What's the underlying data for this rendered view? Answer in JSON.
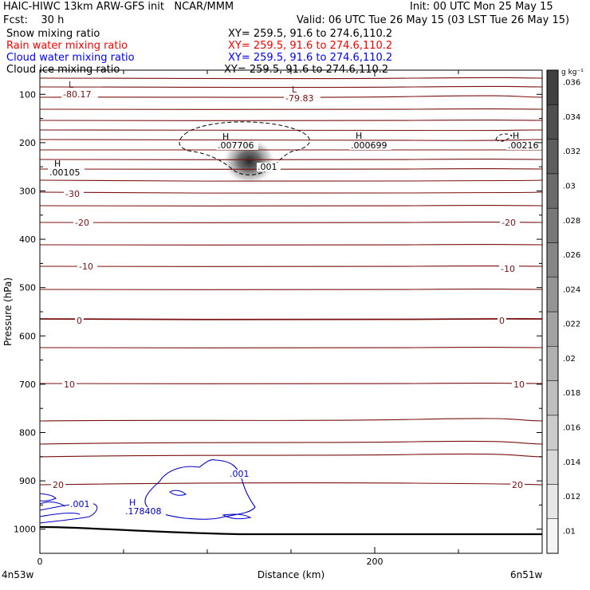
{
  "header": {
    "line1_left": "HAIC-HIWC 13km ARW-GFS init   NCAR/MMM",
    "line1_right": "Init: 00 UTC Mon 25 May 15",
    "line2_left": "Fcst:    30 h",
    "line2_right": "Valid: 06 UTC Tue 26 May 15 (03 LST Tue 26 May 15)",
    "fields": [
      {
        "name": "Snow mixing ratio",
        "xy": "XY= 259.5, 91.6 to 274.6,110.2",
        "color": "#000000"
      },
      {
        "name": "Rain water mixing ratio",
        "xy": "XY= 259.5, 91.6 to 274.6,110.2",
        "color": "#ff0000"
      },
      {
        "name": "Cloud water mixing ratio",
        "xy": "XY= 259.5, 91.6 to 274.6,110.2",
        "color": "#0000ff"
      },
      {
        "name": "Cloud ice mixing ratio",
        "xy": "XY= 259.5, 91.6 to 274.6,110.2",
        "color": "#000000"
      }
    ]
  },
  "chart_data": {
    "type": "heatmap",
    "xlabel": "Distance (km)",
    "ylabel": "Pressure (hPa)",
    "xlim": [
      0,
      300
    ],
    "ylim": [
      1050,
      50
    ],
    "x_ticks": [
      0,
      200
    ],
    "y_ticks": [
      100,
      200,
      300,
      400,
      500,
      600,
      700,
      800,
      900,
      1000
    ],
    "x_endpoints": {
      "left": "4n53w",
      "right": "6n51w"
    },
    "colorbar": {
      "unit": "g kg⁻¹",
      "ticks": [
        ".01",
        ".012",
        ".014",
        ".016",
        ".018",
        ".02",
        ".022",
        ".024",
        ".026",
        ".028",
        ".03",
        ".032",
        ".034",
        ".036"
      ]
    },
    "temperature_contour_labels": [
      "-30",
      "-20",
      "-20",
      "-10",
      "-10",
      "0",
      "0",
      "10",
      "10",
      "20",
      "20"
    ],
    "extrema": [
      {
        "type": "L",
        "value": "-80.17"
      },
      {
        "type": "L",
        "value": "-79.83"
      },
      {
        "type": "H",
        "value": ".007706"
      },
      {
        "type": "H",
        "value": ".000699"
      },
      {
        "type": "H",
        "value": ".00216"
      },
      {
        "type": "H",
        "value": ".00105"
      },
      {
        "type": "H",
        "value": ".178408"
      }
    ],
    "contour_labels": [
      ".001",
      ".001",
      ".001"
    ],
    "cloud_ice_max": {
      "x_km": 125,
      "p_hPa": 245
    },
    "colors": {
      "temperature": "#7a1010",
      "cloud_water": "#0000cc",
      "ice": "#000000",
      "terrain": "#000000"
    }
  }
}
